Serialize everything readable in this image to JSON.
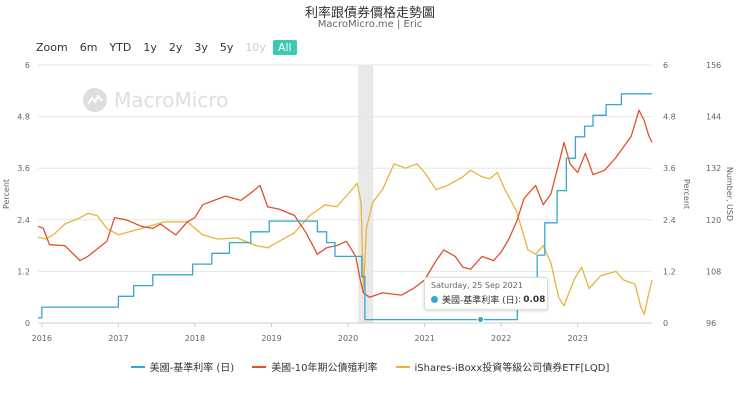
{
  "header": {
    "title": "利率跟債券價格走勢圖",
    "subtitle": "MacroMicro.me | Eric"
  },
  "zoom": {
    "label": "Zoom",
    "buttons": [
      {
        "label": "6m",
        "state": "normal"
      },
      {
        "label": "YTD",
        "state": "normal"
      },
      {
        "label": "1y",
        "state": "normal"
      },
      {
        "label": "2y",
        "state": "normal"
      },
      {
        "label": "3y",
        "state": "normal"
      },
      {
        "label": "5y",
        "state": "normal"
      },
      {
        "label": "10y",
        "state": "disabled"
      },
      {
        "label": "All",
        "state": "active"
      }
    ]
  },
  "watermark": {
    "text": "MacroMicro"
  },
  "tooltip": {
    "date": "Saturday, 25 Sep 2021",
    "series": "美國-基準利率 (日)",
    "value": "0.08"
  },
  "legend": {
    "items": [
      {
        "label": "美國-基準利率 (日)",
        "color": "#3aa6d0"
      },
      {
        "label": "美國-10年期公債殖利率",
        "color": "#e0512f"
      },
      {
        "label": "iShares-iBoxx投資等級公司債券ETF[LQD]",
        "color": "#eab33c"
      }
    ]
  },
  "chart_data": {
    "type": "line",
    "x_axis": {
      "tick_labels": [
        "2016",
        "2017",
        "2018",
        "2019",
        "2020",
        "2021",
        "2022",
        "2023"
      ],
      "range": [
        2015.95,
        2023.97
      ]
    },
    "y_left": {
      "label": "Percent",
      "ticks": [
        "0",
        "1.2",
        "2.4",
        "3.6",
        "4.8",
        "6"
      ],
      "range": [
        0,
        6
      ]
    },
    "y_right_percent": {
      "label": "Percent",
      "ticks": [
        "0",
        "1.2",
        "2.4",
        "3.6",
        "4.8",
        "6"
      ],
      "range": [
        0,
        6
      ]
    },
    "y_right_usd": {
      "label": "Number, USD",
      "ticks": [
        "96",
        "108",
        "120",
        "132",
        "144",
        "156"
      ],
      "range": [
        96,
        156
      ]
    },
    "shaded_period": {
      "from": 2020.13,
      "to": 2020.33
    },
    "grid": true,
    "legend_position": "bottom",
    "colors": {
      "fed_rate": "#3aa6d0",
      "ten_year": "#e0512f",
      "lqd": "#eab33c",
      "shade": "#e9e9e9",
      "grid": "#e6e6e6"
    },
    "series": [
      {
        "name": "美國-基準利率 (日)",
        "axis": "left",
        "step": true,
        "points": [
          [
            2015.95,
            0.12
          ],
          [
            2016.0,
            0.37
          ],
          [
            2016.95,
            0.37
          ],
          [
            2017.0,
            0.62
          ],
          [
            2017.2,
            0.87
          ],
          [
            2017.45,
            1.12
          ],
          [
            2017.97,
            1.37
          ],
          [
            2018.22,
            1.62
          ],
          [
            2018.45,
            1.87
          ],
          [
            2018.73,
            2.12
          ],
          [
            2018.97,
            2.37
          ],
          [
            2019.58,
            2.37
          ],
          [
            2019.6,
            2.12
          ],
          [
            2019.72,
            1.87
          ],
          [
            2019.83,
            1.55
          ],
          [
            2020.17,
            1.55
          ],
          [
            2020.18,
            1.08
          ],
          [
            2020.22,
            0.08
          ],
          [
            2022.2,
            0.08
          ],
          [
            2022.21,
            0.33
          ],
          [
            2022.35,
            0.83
          ],
          [
            2022.47,
            1.58
          ],
          [
            2022.57,
            2.33
          ],
          [
            2022.73,
            3.08
          ],
          [
            2022.85,
            3.83
          ],
          [
            2022.97,
            4.33
          ],
          [
            2023.09,
            4.58
          ],
          [
            2023.2,
            4.83
          ],
          [
            2023.37,
            5.08
          ],
          [
            2023.57,
            5.33
          ],
          [
            2023.97,
            5.33
          ]
        ]
      },
      {
        "name": "美國-10年期公債殖利率",
        "axis": "left",
        "points": [
          [
            2015.95,
            2.25
          ],
          [
            2016.02,
            2.2
          ],
          [
            2016.1,
            1.82
          ],
          [
            2016.3,
            1.8
          ],
          [
            2016.5,
            1.45
          ],
          [
            2016.6,
            1.55
          ],
          [
            2016.85,
            1.9
          ],
          [
            2016.95,
            2.45
          ],
          [
            2017.1,
            2.4
          ],
          [
            2017.3,
            2.25
          ],
          [
            2017.45,
            2.2
          ],
          [
            2017.55,
            2.3
          ],
          [
            2017.75,
            2.05
          ],
          [
            2017.9,
            2.35
          ],
          [
            2018.0,
            2.45
          ],
          [
            2018.1,
            2.75
          ],
          [
            2018.25,
            2.85
          ],
          [
            2018.4,
            2.95
          ],
          [
            2018.6,
            2.85
          ],
          [
            2018.75,
            3.05
          ],
          [
            2018.85,
            3.2
          ],
          [
            2018.95,
            2.7
          ],
          [
            2019.1,
            2.65
          ],
          [
            2019.3,
            2.5
          ],
          [
            2019.45,
            2.1
          ],
          [
            2019.6,
            1.6
          ],
          [
            2019.72,
            1.75
          ],
          [
            2019.85,
            1.8
          ],
          [
            2019.98,
            1.9
          ],
          [
            2020.1,
            1.55
          ],
          [
            2020.16,
            1.0
          ],
          [
            2020.2,
            0.7
          ],
          [
            2020.28,
            0.6
          ],
          [
            2020.45,
            0.7
          ],
          [
            2020.7,
            0.65
          ],
          [
            2020.85,
            0.8
          ],
          [
            2021.0,
            1.0
          ],
          [
            2021.15,
            1.45
          ],
          [
            2021.25,
            1.7
          ],
          [
            2021.4,
            1.55
          ],
          [
            2021.5,
            1.3
          ],
          [
            2021.6,
            1.25
          ],
          [
            2021.75,
            1.55
          ],
          [
            2021.9,
            1.45
          ],
          [
            2022.0,
            1.65
          ],
          [
            2022.1,
            1.95
          ],
          [
            2022.2,
            2.35
          ],
          [
            2022.3,
            2.9
          ],
          [
            2022.45,
            3.2
          ],
          [
            2022.55,
            2.75
          ],
          [
            2022.65,
            3.0
          ],
          [
            2022.78,
            3.9
          ],
          [
            2022.82,
            4.2
          ],
          [
            2022.9,
            3.7
          ],
          [
            2023.0,
            3.5
          ],
          [
            2023.1,
            3.95
          ],
          [
            2023.2,
            3.45
          ],
          [
            2023.35,
            3.55
          ],
          [
            2023.5,
            3.85
          ],
          [
            2023.6,
            4.1
          ],
          [
            2023.7,
            4.35
          ],
          [
            2023.8,
            4.95
          ],
          [
            2023.87,
            4.7
          ],
          [
            2023.93,
            4.35
          ],
          [
            2023.97,
            4.2
          ]
        ]
      },
      {
        "name": "iShares-iBoxx投資等級公司債券ETF[LQD]",
        "axis": "right_usd",
        "points": [
          [
            2015.95,
            116
          ],
          [
            2016.05,
            115.5
          ],
          [
            2016.15,
            116.5
          ],
          [
            2016.3,
            119
          ],
          [
            2016.5,
            120.5
          ],
          [
            2016.6,
            121.5
          ],
          [
            2016.72,
            121
          ],
          [
            2016.85,
            118
          ],
          [
            2017.0,
            116.5
          ],
          [
            2017.2,
            117.5
          ],
          [
            2017.4,
            118.5
          ],
          [
            2017.6,
            119.5
          ],
          [
            2017.9,
            119.5
          ],
          [
            2018.1,
            116.5
          ],
          [
            2018.3,
            115.5
          ],
          [
            2018.55,
            115.8
          ],
          [
            2018.8,
            114
          ],
          [
            2018.95,
            113.5
          ],
          [
            2019.1,
            115
          ],
          [
            2019.3,
            117
          ],
          [
            2019.5,
            121
          ],
          [
            2019.7,
            123.5
          ],
          [
            2019.85,
            123
          ],
          [
            2020.0,
            126
          ],
          [
            2020.12,
            128.5
          ],
          [
            2020.17,
            124
          ],
          [
            2020.2,
            103
          ],
          [
            2020.24,
            118
          ],
          [
            2020.32,
            124
          ],
          [
            2020.45,
            127
          ],
          [
            2020.6,
            133
          ],
          [
            2020.75,
            132
          ],
          [
            2020.9,
            133
          ],
          [
            2021.0,
            131
          ],
          [
            2021.15,
            127
          ],
          [
            2021.3,
            128
          ],
          [
            2021.5,
            130
          ],
          [
            2021.6,
            131.5
          ],
          [
            2021.75,
            130
          ],
          [
            2021.85,
            129.5
          ],
          [
            2021.95,
            131
          ],
          [
            2022.05,
            127
          ],
          [
            2022.2,
            122
          ],
          [
            2022.35,
            113
          ],
          [
            2022.45,
            112
          ],
          [
            2022.55,
            114
          ],
          [
            2022.65,
            110
          ],
          [
            2022.75,
            102
          ],
          [
            2022.82,
            100
          ],
          [
            2022.95,
            106
          ],
          [
            2023.05,
            109
          ],
          [
            2023.15,
            104
          ],
          [
            2023.3,
            107
          ],
          [
            2023.5,
            108
          ],
          [
            2023.6,
            106
          ],
          [
            2023.75,
            105
          ],
          [
            2023.82,
            100
          ],
          [
            2023.87,
            98
          ],
          [
            2023.93,
            103
          ],
          [
            2023.97,
            106
          ]
        ]
      }
    ]
  }
}
